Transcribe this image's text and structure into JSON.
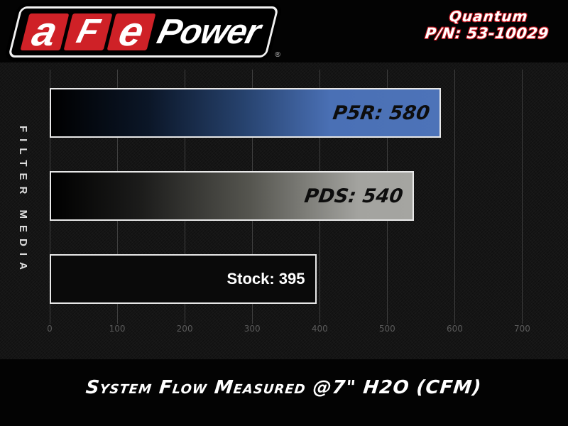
{
  "header": {
    "logo": {
      "letters": [
        "a",
        "F",
        "e"
      ],
      "suffix": "Power",
      "registered": "®",
      "brand_red": "#cf2127"
    },
    "product_name": "Quantum",
    "part_number": "P/N: 53-10029",
    "accent_red": "#c1121c"
  },
  "chart_data": {
    "type": "bar",
    "orientation": "horizontal",
    "title": "System Flow Measured @7\" H2O (CFM)",
    "xlabel": "",
    "ylabel": "FILTER MEDIA",
    "categories": [
      "P5R",
      "PDS",
      "Stock"
    ],
    "values": [
      580,
      540,
      395
    ],
    "xlim": [
      0,
      750
    ],
    "ticks": [
      0,
      100,
      200,
      300,
      400,
      500,
      600,
      700
    ],
    "grid": "vertical",
    "legend": "none",
    "series": [
      {
        "name": "P5R",
        "value": 580,
        "label": "P5R: 580",
        "label_color": "#0d0d0d",
        "label_style": "techno",
        "border": "#e8e8e8",
        "gradient": [
          "#000000 0%",
          "#0b1627 25%",
          "#27436f 50%",
          "#4a70b5 72%",
          "#4d73b8 100%"
        ]
      },
      {
        "name": "PDS",
        "value": 540,
        "label": "PDS: 540",
        "label_color": "#0d0d0d",
        "label_style": "techno",
        "border": "#e8e8e8",
        "gradient": [
          "#000000 0%",
          "#1c1c1b 25%",
          "#55554f 55%",
          "#a3a39f 85%",
          "#a5a5a1 100%"
        ]
      },
      {
        "name": "Stock",
        "value": 395,
        "label": "Stock: 395",
        "label_color": "#ffffff",
        "label_style": "plain",
        "border": "#e8e8e8",
        "gradient": [
          "#0a0a0a 0%",
          "#0a0a0a 100%"
        ]
      }
    ]
  },
  "colors": {
    "banner_bg": "#030303",
    "chart_bg": "#161616",
    "gridline": "#3f3f3f",
    "tick_text": "#5a5a5a",
    "bar_border": "#e8e8e8"
  }
}
